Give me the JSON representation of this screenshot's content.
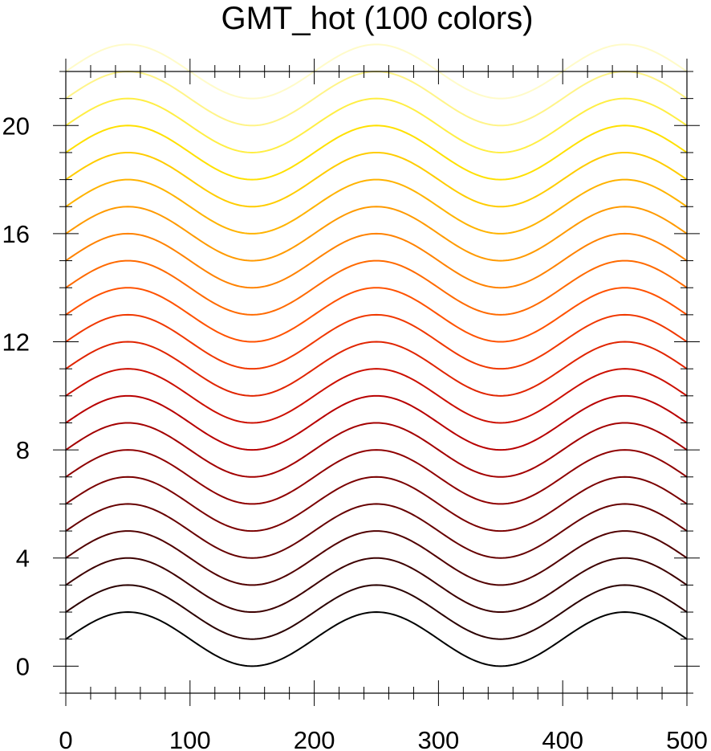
{
  "chart_data": {
    "type": "line",
    "title": "GMT_hot (100 colors)",
    "xlabel": "",
    "ylabel": "",
    "xlim": [
      0,
      500
    ],
    "ylim": [
      -1,
      22
    ],
    "x_ticks": [
      0,
      100,
      200,
      300,
      400,
      500
    ],
    "x_minor_step": 20,
    "y_ticks": [
      0,
      4,
      8,
      12,
      16,
      20
    ],
    "y_minor_step": 1,
    "grid": false,
    "legend": "none",
    "curve": {
      "formula": "y = offset + 1 + sin(2*pi*(x - 0)/200)",
      "amplitude": 1,
      "period": 200,
      "x_peak": 50,
      "x_start": 0,
      "x_end": 500
    },
    "series": [
      {
        "offset": 0,
        "color": "#000000"
      },
      {
        "offset": 1,
        "color": "#2a0000"
      },
      {
        "offset": 2,
        "color": "#3d0000"
      },
      {
        "offset": 3,
        "color": "#510000"
      },
      {
        "offset": 4,
        "color": "#660000"
      },
      {
        "offset": 5,
        "color": "#7a0000"
      },
      {
        "offset": 6,
        "color": "#8f0000"
      },
      {
        "offset": 7,
        "color": "#a30000"
      },
      {
        "offset": 8,
        "color": "#b80000"
      },
      {
        "offset": 9,
        "color": "#cc0f00"
      },
      {
        "offset": 10,
        "color": "#e02400"
      },
      {
        "offset": 11,
        "color": "#f03800"
      },
      {
        "offset": 12,
        "color": "#ff5200"
      },
      {
        "offset": 13,
        "color": "#ff6a00"
      },
      {
        "offset": 14,
        "color": "#ff8200"
      },
      {
        "offset": 15,
        "color": "#ff9a00"
      },
      {
        "offset": 16,
        "color": "#ffb300"
      },
      {
        "offset": 17,
        "color": "#ffcc00"
      },
      {
        "offset": 18,
        "color": "#ffe000"
      },
      {
        "offset": 19,
        "color": "#ffee44"
      },
      {
        "offset": 20,
        "color": "#fff488"
      },
      {
        "offset": 21,
        "color": "#fffbc8"
      }
    ]
  }
}
